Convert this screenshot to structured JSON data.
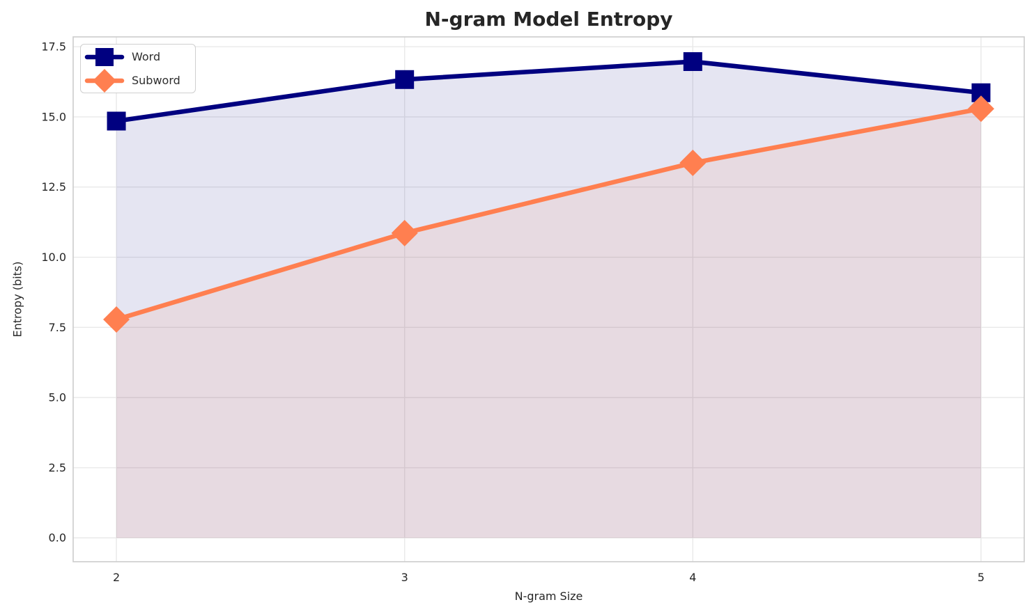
{
  "chart_data": {
    "type": "line",
    "title": "N-gram Model Entropy",
    "xlabel": "N-gram Size",
    "ylabel": "Entropy (bits)",
    "x": [
      2,
      3,
      4,
      5
    ],
    "series": [
      {
        "name": "Word",
        "values": [
          14.85,
          16.33,
          16.97,
          15.86
        ],
        "color": "#000080",
        "marker": "square",
        "fill_to_zero": true
      },
      {
        "name": "Subword",
        "values": [
          7.78,
          10.86,
          13.36,
          15.29
        ],
        "color": "#ff7f50",
        "marker": "diamond",
        "fill_to_zero": true
      }
    ],
    "xticks": [
      "2",
      "3",
      "4",
      "5"
    ],
    "xtick_values": [
      2,
      3,
      4,
      5
    ],
    "yticks": [
      "0.0",
      "2.5",
      "5.0",
      "7.5",
      "10.0",
      "12.5",
      "15.0",
      "17.5"
    ],
    "ytick_values": [
      0,
      2.5,
      5,
      7.5,
      10,
      12.5,
      15,
      17.5
    ],
    "xlim": [
      1.85,
      5.15
    ],
    "ylim": [
      -0.85,
      17.85
    ],
    "grid": true,
    "legend_position": "upper left",
    "fill_alpha": 0.1,
    "line_width": 6.5,
    "grid_color": "#e9e9e9",
    "spine_color": "#cccccc",
    "text_color": "#262626"
  },
  "legend": {
    "items": [
      {
        "label": "Word"
      },
      {
        "label": "Subword"
      }
    ]
  }
}
